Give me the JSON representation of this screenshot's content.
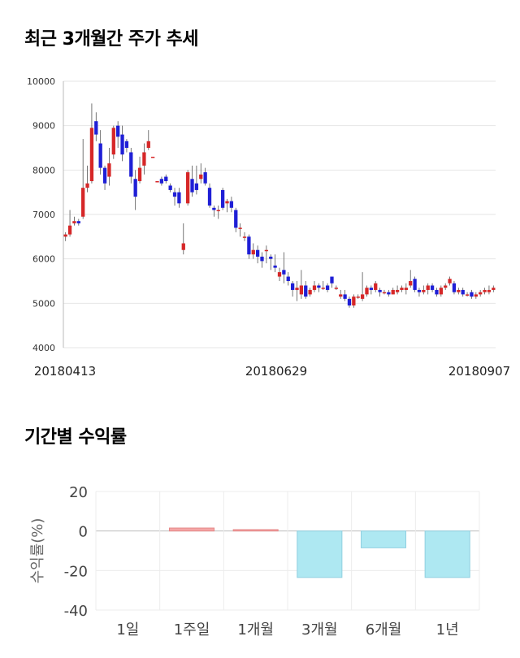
{
  "sections": {
    "price_title": "최근 3개월간 주가 추세",
    "return_title": "기간별 수익률"
  },
  "chart_data": [
    {
      "type": "candlestick",
      "title": "최근 3개월간 주가 추세",
      "ylim": [
        4000,
        10000
      ],
      "yticks": [
        "10000",
        "9000",
        "8000",
        "7000",
        "6000",
        "5000",
        "4000"
      ],
      "xtick_labels": [
        "20180413",
        "20180629",
        "20180907"
      ],
      "colors": {
        "up": "#d62728",
        "down": "#1f1fd6",
        "wick": "#555555"
      },
      "candles": [
        [
          6500,
          6550,
          6400,
          6600
        ],
        [
          6550,
          6750,
          6500,
          7100
        ],
        [
          6800,
          6850,
          6750,
          6950
        ],
        [
          6850,
          6800,
          6750,
          6900
        ],
        [
          6950,
          7600,
          6900,
          8700
        ],
        [
          7600,
          7700,
          7500,
          8100
        ],
        [
          7750,
          8950,
          7700,
          9500
        ],
        [
          9100,
          8800,
          8650,
          9300
        ],
        [
          8600,
          8050,
          7900,
          8900
        ],
        [
          8050,
          7700,
          7550,
          8100
        ],
        [
          7850,
          8150,
          7650,
          8500
        ],
        [
          8350,
          8950,
          8250,
          9000
        ],
        [
          9000,
          8750,
          8500,
          9100
        ],
        [
          8800,
          8350,
          8200,
          9000
        ],
        [
          8650,
          8500,
          8400,
          8700
        ],
        [
          8400,
          7850,
          7700,
          8500
        ],
        [
          7800,
          7400,
          7100,
          8000
        ],
        [
          7750,
          8050,
          7700,
          8300
        ],
        [
          8100,
          8400,
          7900,
          8600
        ],
        [
          8500,
          8650,
          8450,
          8900
        ],
        [
          8300,
          8300,
          8300,
          8300
        ],
        [
          7750,
          7750,
          7750,
          7750
        ],
        [
          7800,
          7700,
          7650,
          7850
        ],
        [
          7850,
          7750,
          7700,
          7900
        ],
        [
          7650,
          7550,
          7500,
          7700
        ],
        [
          7500,
          7400,
          7200,
          7600
        ],
        [
          7500,
          7250,
          7150,
          7600
        ],
        [
          6200,
          6350,
          6100,
          6800
        ],
        [
          7250,
          7950,
          7200,
          8000
        ],
        [
          7800,
          7500,
          7400,
          8100
        ],
        [
          7700,
          7550,
          7450,
          8100
        ],
        [
          7800,
          7900,
          7700,
          8150
        ],
        [
          7950,
          7700,
          7650,
          8050
        ],
        [
          7600,
          7200,
          7150,
          7700
        ],
        [
          7150,
          7100,
          6950,
          7200
        ],
        [
          7100,
          7100,
          6900,
          7200
        ],
        [
          7550,
          7150,
          7100,
          7600
        ],
        [
          7250,
          7300,
          7050,
          7350
        ],
        [
          7300,
          7150,
          7050,
          7400
        ],
        [
          7100,
          6700,
          6600,
          7150
        ],
        [
          6700,
          6700,
          6500,
          6800
        ],
        [
          6500,
          6500,
          6400,
          6600
        ],
        [
          6500,
          6100,
          6000,
          6550
        ],
        [
          6100,
          6200,
          6000,
          6350
        ],
        [
          6200,
          6050,
          5900,
          6300
        ],
        [
          6050,
          5950,
          5800,
          6150
        ],
        [
          6200,
          6200,
          5900,
          6300
        ],
        [
          6050,
          6000,
          5750,
          6100
        ],
        [
          5850,
          5800,
          5700,
          6100
        ],
        [
          5600,
          5700,
          5500,
          5800
        ],
        [
          5750,
          5650,
          5450,
          6150
        ],
        [
          5600,
          5500,
          5400,
          5700
        ],
        [
          5450,
          5300,
          5150,
          5500
        ],
        [
          5300,
          5350,
          5050,
          5500
        ],
        [
          5200,
          5400,
          5100,
          5750
        ],
        [
          5400,
          5150,
          5100,
          5500
        ],
        [
          5200,
          5300,
          5150,
          5350
        ],
        [
          5300,
          5400,
          5250,
          5500
        ],
        [
          5400,
          5350,
          5250,
          5450
        ],
        [
          5350,
          5350,
          5300,
          5500
        ],
        [
          5400,
          5300,
          5250,
          5450
        ],
        [
          5600,
          5450,
          5350,
          5600
        ],
        [
          5350,
          5350,
          5300,
          5400
        ],
        [
          5150,
          5200,
          5100,
          5300
        ],
        [
          5200,
          5100,
          5050,
          5300
        ],
        [
          5100,
          4950,
          4900,
          5150
        ],
        [
          4950,
          5150,
          4900,
          5200
        ],
        [
          5150,
          5150,
          5100,
          5200
        ],
        [
          5100,
          5200,
          5050,
          5700
        ],
        [
          5200,
          5350,
          5150,
          5400
        ],
        [
          5350,
          5300,
          5200,
          5400
        ],
        [
          5300,
          5450,
          5250,
          5500
        ],
        [
          5300,
          5250,
          5150,
          5350
        ],
        [
          5250,
          5250,
          5200,
          5300
        ],
        [
          5250,
          5200,
          5150,
          5300
        ],
        [
          5200,
          5300,
          5200,
          5350
        ],
        [
          5250,
          5300,
          5200,
          5400
        ],
        [
          5300,
          5350,
          5250,
          5400
        ],
        [
          5300,
          5350,
          5200,
          5450
        ],
        [
          5400,
          5500,
          5350,
          5750
        ],
        [
          5550,
          5300,
          5250,
          5600
        ],
        [
          5300,
          5250,
          5150,
          5350
        ],
        [
          5250,
          5300,
          5200,
          5400
        ],
        [
          5300,
          5400,
          5200,
          5450
        ],
        [
          5400,
          5300,
          5250,
          5450
        ],
        [
          5300,
          5200,
          5150,
          5350
        ],
        [
          5200,
          5350,
          5150,
          5400
        ],
        [
          5350,
          5400,
          5300,
          5450
        ],
        [
          5450,
          5550,
          5400,
          5600
        ],
        [
          5450,
          5250,
          5200,
          5500
        ],
        [
          5250,
          5300,
          5200,
          5350
        ],
        [
          5300,
          5200,
          5150,
          5350
        ],
        [
          5200,
          5200,
          5150,
          5250
        ],
        [
          5250,
          5150,
          5100,
          5300
        ],
        [
          5150,
          5200,
          5100,
          5250
        ],
        [
          5200,
          5250,
          5150,
          5300
        ],
        [
          5250,
          5300,
          5200,
          5350
        ],
        [
          5250,
          5300,
          5200,
          5400
        ],
        [
          5300,
          5350,
          5250,
          5400
        ]
      ]
    },
    {
      "type": "bar",
      "title": "기간별 수익률",
      "ylabel": "수익률(%)",
      "ylim": [
        -40,
        20
      ],
      "yticks": [
        20,
        0,
        -20,
        -40
      ],
      "categories": [
        "1일",
        "1주일",
        "1개월",
        "3개월",
        "6개월",
        "1년"
      ],
      "values": [
        0,
        1.5,
        0.7,
        -23.5,
        -8.5,
        -23.5
      ],
      "colors": {
        "positive": "#f4a6a6",
        "negative": "#aee8f2",
        "positive_border": "#e58888",
        "negative_border": "#8fcfe0"
      }
    }
  ]
}
